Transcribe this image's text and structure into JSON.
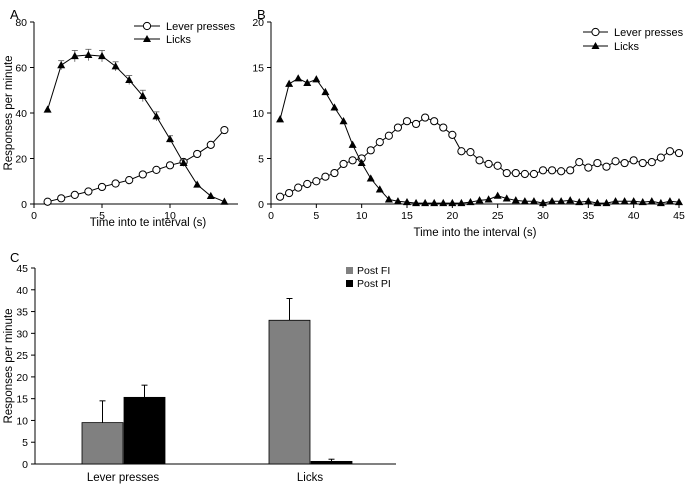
{
  "panels": [
    {
      "label": "A"
    },
    {
      "label": "B"
    },
    {
      "label": "C"
    }
  ],
  "colors": {
    "open_marker": "#ffffff",
    "filled_marker": "#000000",
    "bar_fi": "#808080",
    "bar_pi": "#000000",
    "line": "#000000"
  },
  "chart_data": [
    {
      "type": "line",
      "panel": "A",
      "xlabel": "Time  into te interval (s)",
      "ylabel": "Responses per minute",
      "xlim": [
        0,
        15
      ],
      "ylim": [
        0,
        80
      ],
      "xticks": [
        0,
        5,
        10
      ],
      "yticks": [
        0,
        20,
        40,
        60,
        80
      ],
      "legend_position": "top-right",
      "series": [
        {
          "name": "Lever presses",
          "marker": "open-circle",
          "x": [
            1,
            2,
            3,
            4,
            5,
            6,
            7,
            8,
            9,
            10,
            11,
            12,
            13,
            14
          ],
          "y": [
            1,
            2.5,
            4,
            5.5,
            7.5,
            9,
            10.5,
            13,
            15,
            17,
            18.5,
            22,
            26,
            32.5
          ]
        },
        {
          "name": "Licks",
          "marker": "filled-triangle",
          "x": [
            1,
            2,
            3,
            4,
            5,
            6,
            7,
            8,
            9,
            10,
            11,
            12,
            13,
            14
          ],
          "y": [
            41.5,
            61,
            65,
            65.5,
            65,
            60.5,
            54.5,
            47.5,
            38.5,
            28.5,
            18,
            8.5,
            3.5,
            1
          ],
          "error": [
            0,
            2,
            2.5,
            2.5,
            2.5,
            2,
            2,
            2.5,
            2,
            1.5,
            1.5,
            0,
            0,
            0
          ]
        }
      ]
    },
    {
      "type": "line",
      "panel": "B",
      "xlabel": "Time into the interval (s)",
      "ylabel": "",
      "xlim": [
        0,
        45
      ],
      "ylim": [
        0,
        20
      ],
      "xticks": [
        0,
        5,
        10,
        15,
        20,
        25,
        30,
        35,
        40,
        45
      ],
      "yticks": [
        0,
        5,
        10,
        15,
        20
      ],
      "legend_position": "top-right",
      "series": [
        {
          "name": "Lever presses",
          "marker": "open-circle",
          "x": [
            1,
            2,
            3,
            4,
            5,
            6,
            7,
            8,
            9,
            10,
            11,
            12,
            13,
            14,
            15,
            16,
            17,
            18,
            19,
            20,
            21,
            22,
            23,
            24,
            25,
            26,
            27,
            28,
            29,
            30,
            31,
            32,
            33,
            34,
            35,
            36,
            37,
            38,
            39,
            40,
            41,
            42,
            43,
            44,
            45
          ],
          "y": [
            0.8,
            1.2,
            1.8,
            2.2,
            2.5,
            3.0,
            3.4,
            4.4,
            4.8,
            5.0,
            5.9,
            6.8,
            7.5,
            8.4,
            9.1,
            8.8,
            9.5,
            9.1,
            8.4,
            7.6,
            5.8,
            5.7,
            4.8,
            4.4,
            4.2,
            3.4,
            3.4,
            3.3,
            3.3,
            3.7,
            3.7,
            3.6,
            3.7,
            4.6,
            4.0,
            4.5,
            4.1,
            4.7,
            4.5,
            4.8,
            4.5,
            4.6,
            5.1,
            5.8,
            5.6
          ]
        },
        {
          "name": "Licks",
          "marker": "filled-triangle",
          "x": [
            1,
            2,
            3,
            4,
            5,
            6,
            7,
            8,
            9,
            10,
            11,
            12,
            13,
            14,
            15,
            16,
            17,
            18,
            19,
            20,
            21,
            22,
            23,
            24,
            25,
            26,
            27,
            28,
            29,
            30,
            31,
            32,
            33,
            34,
            35,
            36,
            37,
            38,
            39,
            40,
            41,
            42,
            43,
            44,
            45
          ],
          "y": [
            9.3,
            13.2,
            13.8,
            13.3,
            13.7,
            12.3,
            10.6,
            9.1,
            6.5,
            4.5,
            2.8,
            1.6,
            0.5,
            0.3,
            0.2,
            0.1,
            0.1,
            0.1,
            0.1,
            0.1,
            0.1,
            0.2,
            0.4,
            0.5,
            0.9,
            0.6,
            0.4,
            0.3,
            0.3,
            0.1,
            0.3,
            0.3,
            0.4,
            0.2,
            0.3,
            0.1,
            0.1,
            0.3,
            0.3,
            0.3,
            0.2,
            0.3,
            0.1,
            0.3,
            0.2
          ]
        }
      ]
    },
    {
      "type": "bar",
      "panel": "C",
      "ylabel": "Responses per minute",
      "ylim": [
        0,
        45
      ],
      "yticks": [
        0,
        5,
        10,
        15,
        20,
        25,
        30,
        35,
        40,
        45
      ],
      "categories": [
        "Lever presses",
        "Licks"
      ],
      "legend_position": "top-center",
      "series": [
        {
          "name": "Post FI",
          "values": [
            9.5,
            33
          ],
          "error": [
            5,
            5
          ]
        },
        {
          "name": "Post PI",
          "values": [
            15.3,
            0.6
          ],
          "error": [
            2.8,
            0.5
          ]
        }
      ]
    }
  ]
}
